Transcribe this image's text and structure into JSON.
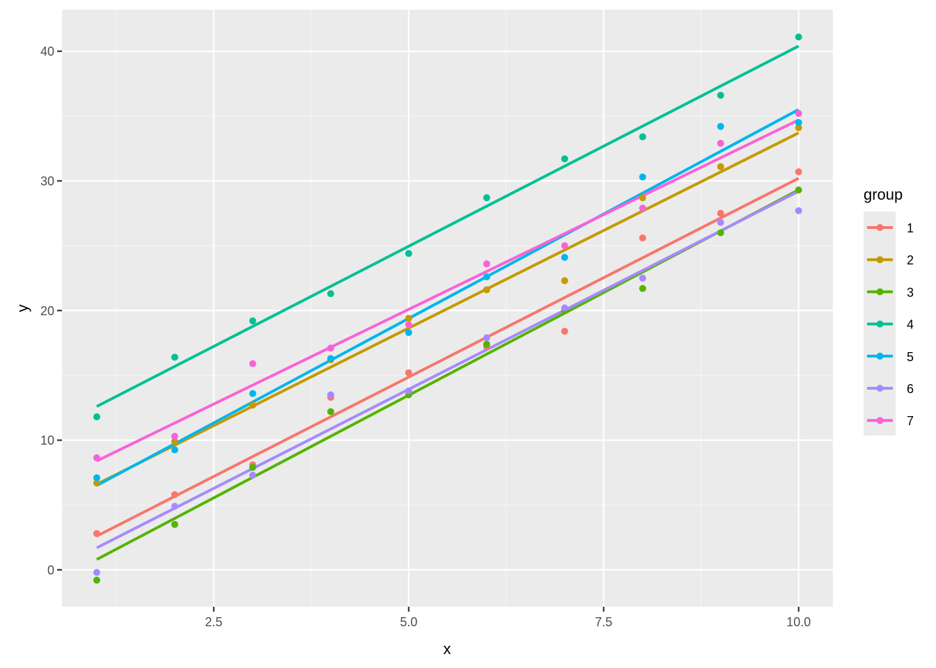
{
  "chart_data": {
    "type": "scatter",
    "subtype": "scatter with per-group linear regression lines",
    "title": "",
    "xlabel": "x",
    "ylabel": "y",
    "xlim": [
      0.554,
      10.44
    ],
    "ylim": [
      -2.85,
      43.2
    ],
    "x_ticks": [
      2.5,
      5.0,
      7.5,
      10.0
    ],
    "x_tick_labels": [
      "2.5",
      "5.0",
      "7.5",
      "10.0"
    ],
    "y_ticks": [
      0,
      10,
      20,
      30,
      40
    ],
    "y_tick_labels": [
      "0",
      "10",
      "20",
      "30",
      "40"
    ],
    "grid": true,
    "legend": {
      "title": "group",
      "position": "right"
    },
    "x": [
      1,
      2,
      3,
      4,
      5,
      6,
      7,
      8,
      9,
      10
    ],
    "series": [
      {
        "name": "1",
        "color": "#F8766D",
        "values": [
          2.8,
          5.8,
          8.1,
          13.3,
          15.2,
          17.2,
          18.4,
          25.6,
          27.5,
          30.7
        ],
        "fit": [
          2.6,
          30.2
        ]
      },
      {
        "name": "2",
        "color": "#C49A00",
        "values": [
          6.7,
          9.9,
          12.7,
          16.2,
          19.4,
          21.6,
          22.3,
          28.7,
          31.1,
          34.1
        ],
        "fit": [
          6.6,
          33.7
        ]
      },
      {
        "name": "3",
        "color": "#53B400",
        "values": [
          -0.8,
          3.5,
          7.9,
          12.2,
          13.5,
          17.4,
          20.0,
          21.7,
          26.0,
          29.3
        ],
        "fit": [
          0.8,
          29.3
        ]
      },
      {
        "name": "4",
        "color": "#00C094",
        "values": [
          11.8,
          16.4,
          19.2,
          21.3,
          24.4,
          28.7,
          31.7,
          33.4,
          36.6,
          41.1
        ],
        "fit": [
          12.6,
          40.4
        ]
      },
      {
        "name": "5",
        "color": "#00B6EB",
        "values": [
          7.1,
          9.25,
          13.6,
          16.3,
          18.3,
          22.6,
          24.1,
          30.3,
          34.2,
          34.5
        ],
        "fit": [
          6.5,
          35.5
        ]
      },
      {
        "name": "6",
        "color": "#A58AFF",
        "values": [
          -0.2,
          4.9,
          7.3,
          13.5,
          13.8,
          17.9,
          20.2,
          22.5,
          26.8,
          27.7
        ],
        "fit": [
          1.7,
          29.2
        ]
      },
      {
        "name": "7",
        "color": "#FB61D7",
        "values": [
          8.64,
          10.3,
          15.9,
          17.1,
          18.9,
          23.6,
          25.0,
          27.9,
          32.9,
          35.2
        ],
        "fit": [
          8.4,
          34.7
        ]
      }
    ]
  },
  "legend_title": "group",
  "axis": {
    "x_title": "x",
    "y_title": "y"
  },
  "style": {
    "panel_bg": "#EBEBEB",
    "grid_major": "#FFFFFF",
    "grid_minor": "#F5F5F5",
    "tick_color": "#333333"
  }
}
